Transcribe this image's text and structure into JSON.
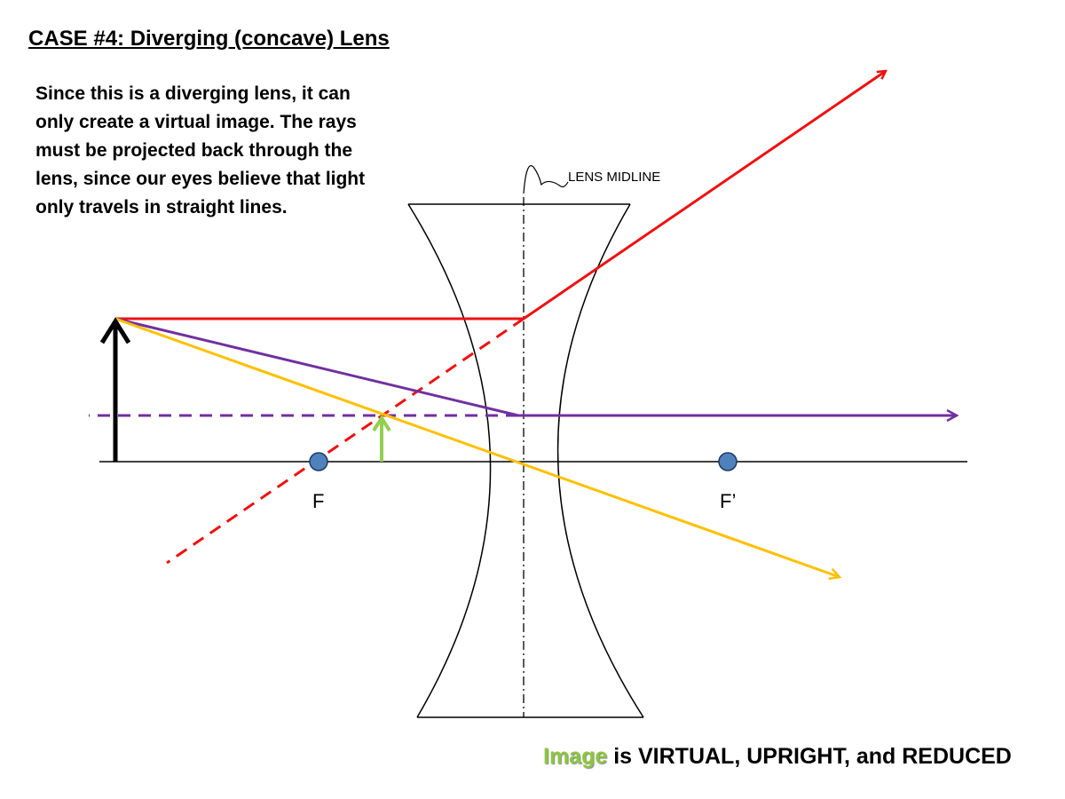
{
  "title": "CASE #4: Diverging (concave) Lens",
  "intro": "Since this is a diverging lens, it can only create a virtual image.  The rays must be projected back through the lens, since our eyes believe that light only travels in straight lines.",
  "labels": {
    "lens_midline": "LENS MIDLINE",
    "focal_point_left": "F",
    "focal_point_right": "F’"
  },
  "conclusion": {
    "highlight": "Image",
    "rest": " is VIRTUAL, UPRIGHT, and REDUCED"
  },
  "colors": {
    "red_ray": "#ee1111",
    "purple_ray": "#7030a0",
    "yellow_ray": "#ffc000",
    "object_arrow": "#000000",
    "image_arrow": "#92d050",
    "focal_point_fill": "#4f81bd",
    "highlight_text": "#8dc63f"
  }
}
